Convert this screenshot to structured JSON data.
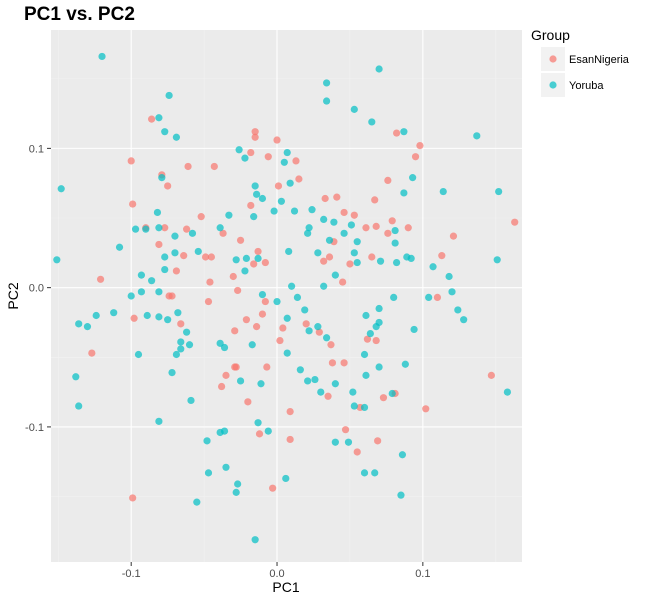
{
  "chart_data": {
    "type": "scatter",
    "title": "PC1 vs. PC2",
    "xlabel": "PC1",
    "ylabel": "PC2",
    "xlim": [
      -0.155,
      0.168
    ],
    "ylim": [
      -0.197,
      0.185
    ],
    "x_ticks": [
      -0.1,
      0.0,
      0.1
    ],
    "y_ticks": [
      -0.1,
      0.0,
      0.1
    ],
    "x_tick_labels": [
      "-0.1",
      "0.0",
      "0.1"
    ],
    "y_tick_labels": [
      "-0.1",
      "0.0",
      "0.1"
    ],
    "grid": true,
    "legend_title": "Group",
    "legend_position": "right",
    "series": [
      {
        "name": "EsanNigeria",
        "color": "#F8766D",
        "points": [
          [
            -0.086,
            0.121
          ],
          [
            -0.1,
            0.091
          ],
          [
            -0.09,
            0.043
          ],
          [
            -0.079,
            0.081
          ],
          [
            -0.075,
            0.073
          ],
          [
            -0.061,
            0.087
          ],
          [
            -0.043,
            0.087
          ],
          [
            -0.099,
            0.06
          ],
          [
            -0.077,
            0.043
          ],
          [
            -0.062,
            0.042
          ],
          [
            -0.052,
            0.051
          ],
          [
            -0.064,
            0.023
          ],
          [
            -0.081,
            0.031
          ],
          [
            -0.069,
            0.012
          ],
          [
            -0.072,
            -0.006
          ],
          [
            -0.074,
            -0.006
          ],
          [
            -0.049,
            0.022
          ],
          [
            -0.046,
            0.004
          ],
          [
            -0.047,
            -0.01
          ],
          [
            -0.066,
            -0.026
          ],
          [
            -0.098,
            -0.022
          ],
          [
            -0.121,
            0.006
          ],
          [
            -0.127,
            -0.047
          ],
          [
            -0.099,
            -0.151
          ],
          [
            -0.015,
            0.108
          ],
          [
            -0.015,
            0.112
          ],
          [
            0.0,
            0.106
          ],
          [
            -0.018,
            0.097
          ],
          [
            -0.006,
            0.094
          ],
          [
            0.013,
            0.091
          ],
          [
            0.015,
            0.078
          ],
          [
            0.001,
            0.073
          ],
          [
            -0.018,
            0.059
          ],
          [
            -0.025,
            0.034
          ],
          [
            -0.037,
            0.039
          ],
          [
            -0.013,
            0.026
          ],
          [
            -0.016,
            0.017
          ],
          [
            -0.03,
            0.008
          ],
          [
            -0.045,
            0.022
          ],
          [
            -0.027,
            -0.002
          ],
          [
            -0.021,
            -0.023
          ],
          [
            -0.008,
            0.018
          ],
          [
            -0.008,
            -0.01
          ],
          [
            -0.01,
            -0.019
          ],
          [
            0.004,
            -0.029
          ],
          [
            -0.029,
            -0.031
          ],
          [
            -0.014,
            -0.028
          ],
          [
            0.002,
            -0.038
          ],
          [
            -0.029,
            -0.057
          ],
          [
            -0.028,
            -0.057
          ],
          [
            -0.035,
            -0.063
          ],
          [
            -0.038,
            -0.071
          ],
          [
            -0.007,
            -0.057
          ],
          [
            -0.02,
            -0.082
          ],
          [
            0.009,
            -0.089
          ],
          [
            -0.012,
            -0.105
          ],
          [
            0.009,
            -0.109
          ],
          [
            -0.003,
            -0.144
          ],
          [
            0.033,
            0.064
          ],
          [
            0.041,
            0.065
          ],
          [
            0.039,
            0.033
          ],
          [
            0.046,
            0.054
          ],
          [
            0.053,
            0.052
          ],
          [
            0.061,
            0.043
          ],
          [
            0.067,
            0.063
          ],
          [
            0.076,
            0.077
          ],
          [
            0.068,
            0.044
          ],
          [
            0.079,
            0.048
          ],
          [
            0.076,
            0.039
          ],
          [
            0.095,
            0.094
          ],
          [
            0.098,
            0.102
          ],
          [
            0.082,
            0.111
          ],
          [
            0.05,
            0.017
          ],
          [
            0.065,
            0.022
          ],
          [
            0.036,
            0.022
          ],
          [
            0.032,
            0.019
          ],
          [
            0.045,
            0.004
          ],
          [
            0.02,
            -0.026
          ],
          [
            0.029,
            -0.032
          ],
          [
            0.037,
            -0.041
          ],
          [
            0.038,
            -0.054
          ],
          [
            0.046,
            -0.054
          ],
          [
            0.062,
            -0.037
          ],
          [
            0.068,
            -0.038
          ],
          [
            0.035,
            -0.078
          ],
          [
            0.073,
            -0.079
          ],
          [
            0.057,
            -0.086
          ],
          [
            0.047,
            -0.102
          ],
          [
            0.055,
            -0.118
          ],
          [
            0.069,
            -0.11
          ],
          [
            0.081,
            -0.076
          ],
          [
            0.102,
            -0.087
          ],
          [
            0.11,
            -0.007
          ],
          [
            0.121,
            0.037
          ],
          [
            0.113,
            0.023
          ],
          [
            0.147,
            -0.063
          ],
          [
            0.163,
            0.047
          ],
          [
            0.09,
            0.043
          ]
        ]
      },
      {
        "name": "Yoruba",
        "color": "#00BFC4",
        "points": [
          [
            -0.12,
            0.166
          ],
          [
            -0.148,
            0.071
          ],
          [
            -0.151,
            0.02
          ],
          [
            -0.108,
            0.029
          ],
          [
            -0.074,
            0.138
          ],
          [
            -0.081,
            0.122
          ],
          [
            -0.077,
            0.112
          ],
          [
            -0.069,
            0.108
          ],
          [
            -0.079,
            0.079
          ],
          [
            -0.097,
            0.042
          ],
          [
            -0.09,
            0.042
          ],
          [
            -0.082,
            0.054
          ],
          [
            -0.081,
            0.043
          ],
          [
            -0.077,
            0.022
          ],
          [
            -0.07,
            0.025
          ],
          [
            -0.07,
            0.037
          ],
          [
            -0.058,
            0.039
          ],
          [
            -0.054,
            0.026
          ],
          [
            -0.077,
            0.013
          ],
          [
            -0.089,
            -0.02
          ],
          [
            -0.093,
            -0.003
          ],
          [
            -0.093,
            0.009
          ],
          [
            -0.1,
            -0.006
          ],
          [
            -0.086,
            0.005
          ],
          [
            -0.081,
            -0.003
          ],
          [
            -0.075,
            -0.023
          ],
          [
            -0.081,
            -0.021
          ],
          [
            -0.068,
            -0.018
          ],
          [
            -0.062,
            -0.032
          ],
          [
            -0.066,
            -0.039
          ],
          [
            -0.06,
            -0.041
          ],
          [
            -0.069,
            -0.048
          ],
          [
            -0.066,
            -0.044
          ],
          [
            -0.072,
            -0.061
          ],
          [
            -0.124,
            -0.02
          ],
          [
            -0.136,
            -0.026
          ],
          [
            -0.13,
            -0.028
          ],
          [
            -0.138,
            -0.064
          ],
          [
            -0.136,
            -0.085
          ],
          [
            -0.112,
            -0.018
          ],
          [
            -0.095,
            -0.048
          ],
          [
            -0.081,
            -0.096
          ],
          [
            -0.059,
            -0.081
          ],
          [
            -0.048,
            -0.11
          ],
          [
            -0.039,
            -0.104
          ],
          [
            -0.047,
            -0.133
          ],
          [
            -0.055,
            -0.154
          ],
          [
            -0.035,
            -0.129
          ],
          [
            -0.036,
            -0.103
          ],
          [
            -0.027,
            -0.141
          ],
          [
            -0.028,
            -0.147
          ],
          [
            -0.015,
            -0.181
          ],
          [
            -0.013,
            -0.097
          ],
          [
            -0.006,
            -0.103
          ],
          [
            0.0,
            -0.01
          ],
          [
            0.007,
            -0.022
          ],
          [
            -0.01,
            -0.005
          ],
          [
            -0.026,
            0.099
          ],
          [
            -0.022,
            0.093
          ],
          [
            -0.002,
            0.055
          ],
          [
            -0.015,
            0.073
          ],
          [
            -0.014,
            0.067
          ],
          [
            -0.01,
            0.064
          ],
          [
            -0.016,
            0.051
          ],
          [
            -0.033,
            0.052
          ],
          [
            -0.039,
            0.043
          ],
          [
            -0.028,
            0.02
          ],
          [
            -0.021,
            0.021
          ],
          [
            -0.013,
            0.021
          ],
          [
            -0.022,
            0.012
          ],
          [
            -0.039,
            -0.04
          ],
          [
            -0.036,
            -0.043
          ],
          [
            -0.025,
            -0.067
          ],
          [
            -0.017,
            -0.041
          ],
          [
            -0.011,
            -0.069
          ],
          [
            0.007,
            -0.047
          ],
          [
            0.009,
            0.075
          ],
          [
            0.007,
            0.097
          ],
          [
            0.005,
            0.09
          ],
          [
            0.003,
            0.062
          ],
          [
            0.012,
            0.055
          ],
          [
            0.024,
            0.056
          ],
          [
            0.022,
            0.043
          ],
          [
            0.021,
            0.039
          ],
          [
            0.028,
            0.025
          ],
          [
            0.008,
            0.026
          ],
          [
            0.01,
            0.001
          ],
          [
            0.014,
            -0.007
          ],
          [
            0.019,
            -0.016
          ],
          [
            0.022,
            -0.031
          ],
          [
            0.016,
            -0.059
          ],
          [
            0.021,
            -0.067
          ],
          [
            0.028,
            -0.028
          ],
          [
            0.034,
            -0.036
          ],
          [
            0.032,
            0.001
          ],
          [
            0.04,
            0.009
          ],
          [
            0.036,
            0.034
          ],
          [
            0.032,
            0.049
          ],
          [
            0.039,
            0.047
          ],
          [
            0.046,
            0.039
          ],
          [
            0.051,
            0.045
          ],
          [
            0.053,
            0.025
          ],
          [
            0.055,
            0.033
          ],
          [
            0.055,
            0.018
          ],
          [
            0.034,
            0.147
          ],
          [
            0.034,
            0.134
          ],
          [
            0.053,
            0.128
          ],
          [
            0.065,
            0.119
          ],
          [
            0.07,
            0.157
          ],
          [
            0.087,
            0.112
          ],
          [
            0.093,
            0.079
          ],
          [
            0.087,
            0.068
          ],
          [
            0.081,
            0.041
          ],
          [
            0.081,
            0.032
          ],
          [
            0.071,
            0.019
          ],
          [
            0.082,
            0.018
          ],
          [
            0.089,
            0.022
          ],
          [
            0.092,
            0.021
          ],
          [
            0.107,
            0.015
          ],
          [
            0.118,
            0.008
          ],
          [
            0.12,
            -0.003
          ],
          [
            0.124,
            -0.016
          ],
          [
            0.128,
            -0.023
          ],
          [
            0.114,
            0.069
          ],
          [
            0.137,
            0.109
          ],
          [
            0.152,
            0.069
          ],
          [
            0.151,
            0.02
          ],
          [
            0.158,
            -0.075
          ],
          [
            0.026,
            -0.066
          ],
          [
            0.03,
            -0.075
          ],
          [
            0.04,
            -0.069
          ],
          [
            0.052,
            -0.075
          ],
          [
            0.061,
            -0.063
          ],
          [
            0.053,
            -0.085
          ],
          [
            0.06,
            -0.086
          ],
          [
            0.068,
            -0.028
          ],
          [
            0.064,
            -0.033
          ],
          [
            0.06,
            -0.048
          ],
          [
            0.07,
            -0.057
          ],
          [
            0.079,
            -0.076
          ],
          [
            0.086,
            -0.12
          ],
          [
            0.085,
            -0.149
          ],
          [
            0.049,
            -0.111
          ],
          [
            0.04,
            -0.111
          ],
          [
            0.06,
            -0.133
          ],
          [
            0.067,
            -0.133
          ],
          [
            0.006,
            -0.137
          ],
          [
            0.07,
            -0.015
          ],
          [
            0.061,
            -0.02
          ],
          [
            0.07,
            -0.025
          ],
          [
            0.094,
            -0.03
          ],
          [
            0.088,
            -0.055
          ],
          [
            0.08,
            -0.007
          ],
          [
            0.104,
            -0.007
          ]
        ]
      }
    ]
  }
}
